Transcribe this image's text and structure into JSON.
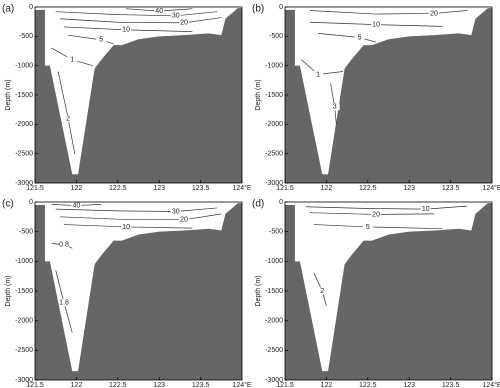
{
  "chart_data": [
    {
      "type": "section",
      "title": "(a)",
      "ylabel": "Depth (m)",
      "xlim": [
        121.5,
        124
      ],
      "ylim": [
        -3000,
        0
      ],
      "xticks": [
        121.5,
        122,
        122.5,
        123,
        123.5,
        {
          "value": 124,
          "label": "124°E"
        }
      ],
      "yticks": [
        0,
        -500,
        -1000,
        -1500,
        -2000,
        -2500,
        -3000
      ],
      "bathymetry": {
        "x": [
          121.5,
          121.62,
          121.62,
          121.68,
          121.95,
          122.02,
          122.22,
          122.3,
          122.45,
          122.55,
          122.75,
          123.0,
          123.3,
          123.6,
          123.75,
          123.8,
          123.95,
          124
        ],
        "y": [
          -50,
          -50,
          -1000,
          -1000,
          -2850,
          -2850,
          -1050,
          -900,
          -650,
          -650,
          -550,
          -500,
          -480,
          -450,
          -480,
          -200,
          -20,
          -20
        ]
      },
      "contours": [
        {
          "level": 40,
          "x": [
            122.6,
            123.0,
            123.4
          ],
          "y": [
            -30,
            -70,
            -30
          ]
        },
        {
          "level": 30,
          "x": [
            121.75,
            122.5,
            123.2,
            123.7
          ],
          "y": [
            -80,
            -130,
            -150,
            -80
          ]
        },
        {
          "level": 20,
          "x": [
            121.8,
            122.5,
            123.3,
            123.75
          ],
          "y": [
            -200,
            -260,
            -270,
            -180
          ]
        },
        {
          "level": 10,
          "x": [
            121.85,
            122.6,
            123.4
          ],
          "y": [
            -340,
            -390,
            -420
          ]
        },
        {
          "level": 5,
          "x": [
            121.9,
            122.3,
            122.45
          ],
          "y": [
            -480,
            -560,
            -630
          ]
        },
        {
          "level": 1,
          "x": [
            121.7,
            121.95,
            122.2
          ],
          "y": [
            -700,
            -900,
            -1000
          ]
        },
        {
          "level": 2,
          "x": [
            121.78,
            121.9,
            121.98
          ],
          "y": [
            -1100,
            -1900,
            -2500
          ]
        }
      ]
    },
    {
      "type": "section",
      "title": "(b)",
      "ylabel": "Depth (m)",
      "xlim": [
        121.5,
        124
      ],
      "ylim": [
        -3000,
        0
      ],
      "xticks": [
        121.5,
        122,
        122.5,
        123,
        123.5,
        {
          "value": 124,
          "label": "124°E"
        }
      ],
      "yticks": [
        0,
        -500,
        -1000,
        -1500,
        -2000,
        -2500,
        -3000
      ],
      "bathymetry": {
        "x": [
          121.5,
          121.62,
          121.62,
          121.68,
          121.95,
          122.02,
          122.22,
          122.3,
          122.45,
          122.55,
          122.75,
          123.0,
          123.3,
          123.6,
          123.75,
          123.8,
          123.95,
          124
        ],
        "y": [
          -50,
          -50,
          -1000,
          -1000,
          -2850,
          -2850,
          -1050,
          -900,
          -650,
          -650,
          -550,
          -500,
          -480,
          -450,
          -480,
          -200,
          -20,
          -20
        ]
      },
      "contours": [
        {
          "level": 20,
          "x": [
            121.8,
            122.6,
            123.3,
            123.7
          ],
          "y": [
            -60,
            -120,
            -110,
            -60
          ]
        },
        {
          "level": 10,
          "x": [
            121.8,
            122.6,
            123.4
          ],
          "y": [
            -260,
            -300,
            -330
          ]
        },
        {
          "level": 5,
          "x": [
            121.9,
            122.4,
            122.6
          ],
          "y": [
            -450,
            -520,
            -600
          ]
        },
        {
          "level": 1,
          "x": [
            121.7,
            121.9,
            122.2
          ],
          "y": [
            -900,
            -1150,
            -1100
          ]
        },
        {
          "level": 3,
          "x": [
            122.05,
            122.1,
            122.12
          ],
          "y": [
            -1300,
            -1700,
            -2000
          ]
        }
      ]
    },
    {
      "type": "section",
      "title": "(c)",
      "ylabel": "Depth (m)",
      "xlim": [
        121.5,
        124
      ],
      "ylim": [
        -3000,
        0
      ],
      "xticks": [
        121.5,
        122,
        122.5,
        123,
        123.5,
        {
          "value": 124,
          "label": "124°E"
        }
      ],
      "yticks": [
        0,
        -500,
        -1000,
        -1500,
        -2000,
        -2500,
        -3000
      ],
      "bathymetry": {
        "x": [
          121.5,
          121.62,
          121.62,
          121.68,
          121.95,
          122.02,
          122.22,
          122.3,
          122.45,
          122.55,
          122.75,
          123.0,
          123.3,
          123.6,
          123.75,
          123.8,
          123.95,
          124
        ],
        "y": [
          -50,
          -50,
          -1000,
          -1000,
          -2850,
          -2850,
          -1050,
          -900,
          -650,
          -650,
          -550,
          -500,
          -480,
          -450,
          -480,
          -200,
          -20,
          -20
        ]
      },
      "contours": [
        {
          "level": 40,
          "x": [
            121.7,
            122.0,
            122.3
          ],
          "y": [
            -40,
            -60,
            -40
          ]
        },
        {
          "level": 30,
          "x": [
            121.75,
            122.5,
            123.2,
            123.7
          ],
          "y": [
            -120,
            -150,
            -160,
            -100
          ]
        },
        {
          "level": 20,
          "x": [
            121.8,
            122.5,
            123.3,
            123.75
          ],
          "y": [
            -250,
            -290,
            -300,
            -200
          ]
        },
        {
          "level": 10,
          "x": [
            121.85,
            122.6,
            123.4
          ],
          "y": [
            -380,
            -420,
            -440
          ]
        },
        {
          "level": 0.8,
          "x": [
            121.7,
            121.85,
            121.95
          ],
          "y": [
            -700,
            -720,
            -780
          ]
        },
        {
          "level": 1.6,
          "x": [
            121.75,
            121.85,
            121.95
          ],
          "y": [
            -1150,
            -1700,
            -2200
          ]
        }
      ]
    },
    {
      "type": "section",
      "title": "(d)",
      "ylabel": "Depth (m)",
      "xlim": [
        121.5,
        124
      ],
      "ylim": [
        -3000,
        0
      ],
      "xticks": [
        121.5,
        122,
        122.5,
        123,
        123.5,
        {
          "value": 124,
          "label": "124°E"
        }
      ],
      "yticks": [
        0,
        -500,
        -1000,
        -1500,
        -2000,
        -2500,
        -3000
      ],
      "bathymetry": {
        "x": [
          121.5,
          121.62,
          121.62,
          121.68,
          121.95,
          122.02,
          122.22,
          122.3,
          122.45,
          122.55,
          122.75,
          123.0,
          123.3,
          123.6,
          123.75,
          123.8,
          123.95,
          124
        ],
        "y": [
          -50,
          -50,
          -1000,
          -1000,
          -2850,
          -2850,
          -1050,
          -900,
          -650,
          -650,
          -550,
          -500,
          -480,
          -450,
          -480,
          -200,
          -20,
          -20
        ]
      },
      "contours": [
        {
          "level": 10,
          "x": [
            121.75,
            122.5,
            123.2,
            123.7
          ],
          "y": [
            -80,
            -110,
            -120,
            -70
          ]
        },
        {
          "level": 20,
          "x": [
            121.8,
            122.6,
            123.3
          ],
          "y": [
            -180,
            -210,
            -200
          ]
        },
        {
          "level": 5,
          "x": [
            121.85,
            122.5,
            123.4
          ],
          "y": [
            -380,
            -420,
            -450
          ]
        },
        {
          "level": 2,
          "x": [
            121.85,
            121.95,
            122.0
          ],
          "y": [
            -1200,
            -1500,
            -1750
          ]
        }
      ]
    }
  ]
}
